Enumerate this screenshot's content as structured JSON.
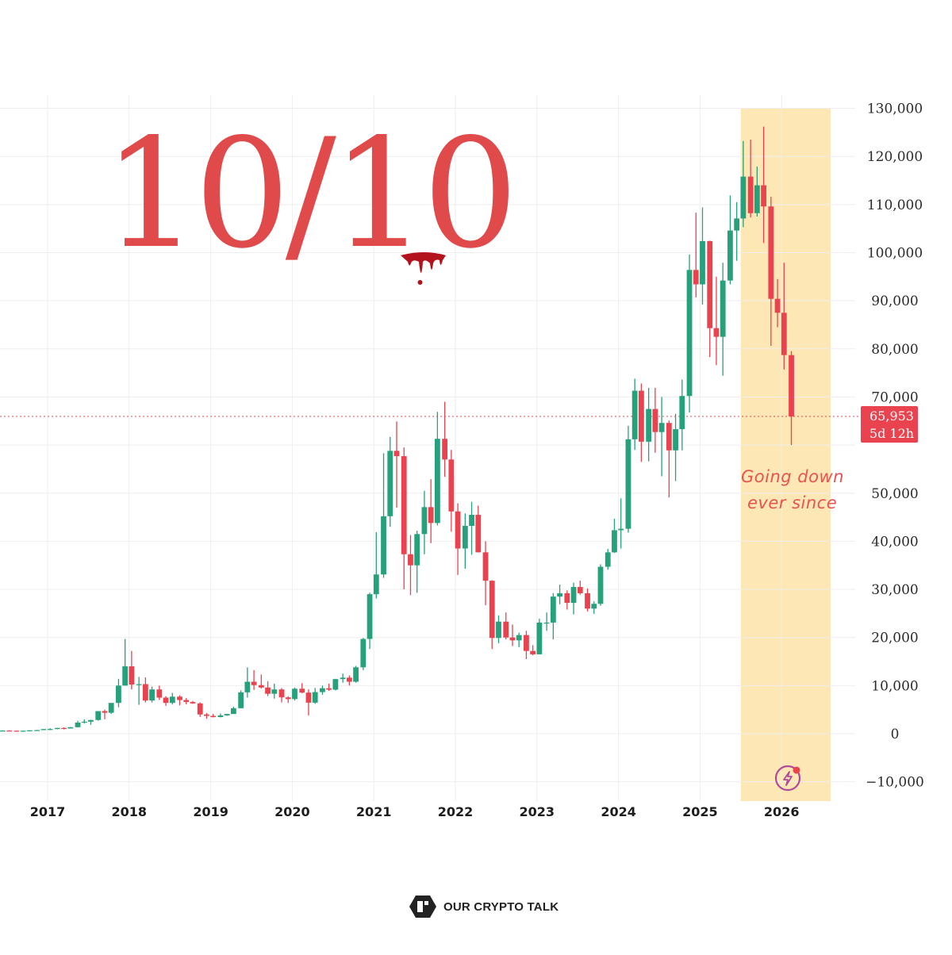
{
  "headline": "10/10",
  "annotation": {
    "line1": "Going down",
    "line2": "ever since"
  },
  "brand": {
    "name": "OUR CRYPTO TALK"
  },
  "colors": {
    "up": "#26a17b",
    "down": "#e8434f",
    "highlight": "#fde7b4",
    "price_line": "#e8434f",
    "headline": "#e04a4a"
  },
  "icons": {
    "bolt": "lightning-bolt-icon"
  },
  "chart_data": {
    "type": "candlestick",
    "title": "",
    "xlabel": "",
    "ylabel": "",
    "ylim": [
      -14000,
      130000
    ],
    "y_ticks": [
      130000,
      120000,
      110000,
      100000,
      90000,
      80000,
      70000,
      60000,
      50000,
      40000,
      30000,
      20000,
      10000,
      0,
      -10000
    ],
    "y_tick_labels": [
      "130,000",
      "120,000",
      "110,000",
      "100,000",
      "90,000",
      "80,000",
      "70,000",
      "",
      "50,000",
      "40,000",
      "30,000",
      "20,000",
      "10,000",
      "0",
      "−10,000"
    ],
    "x_ticks": [
      2017,
      2018,
      2019,
      2020,
      2021,
      2022,
      2023,
      2024,
      2025,
      2026
    ],
    "x_tick_labels": [
      "2017",
      "2018",
      "2019",
      "2020",
      "2021",
      "2022",
      "2023",
      "2024",
      "2025",
      "2026"
    ],
    "grid": true,
    "last_price": {
      "value": 65953,
      "label": "65,953",
      "countdown": "5d 12h"
    },
    "highlight_range": [
      2025.5,
      2026.6
    ],
    "candles": [
      {
        "t": 2016.45,
        "o": 600,
        "h": 700,
        "l": 500,
        "c": 650
      },
      {
        "t": 2016.53,
        "o": 650,
        "h": 720,
        "l": 550,
        "c": 620
      },
      {
        "t": 2016.62,
        "o": 620,
        "h": 680,
        "l": 560,
        "c": 600
      },
      {
        "t": 2016.7,
        "o": 600,
        "h": 650,
        "l": 570,
        "c": 620
      },
      {
        "t": 2016.78,
        "o": 620,
        "h": 720,
        "l": 600,
        "c": 700
      },
      {
        "t": 2016.87,
        "o": 700,
        "h": 800,
        "l": 690,
        "c": 750
      },
      {
        "t": 2016.95,
        "o": 750,
        "h": 970,
        "l": 740,
        "c": 960
      },
      {
        "t": 2017.03,
        "o": 970,
        "h": 1150,
        "l": 750,
        "c": 970
      },
      {
        "t": 2017.12,
        "o": 970,
        "h": 1200,
        "l": 920,
        "c": 1190
      },
      {
        "t": 2017.2,
        "o": 1190,
        "h": 1300,
        "l": 890,
        "c": 1080
      },
      {
        "t": 2017.28,
        "o": 1080,
        "h": 1400,
        "l": 1070,
        "c": 1350
      },
      {
        "t": 2017.37,
        "o": 1350,
        "h": 2700,
        "l": 1350,
        "c": 2300
      },
      {
        "t": 2017.45,
        "o": 2300,
        "h": 3000,
        "l": 2100,
        "c": 2500
      },
      {
        "t": 2017.53,
        "o": 2500,
        "h": 2900,
        "l": 1850,
        "c": 2850
      },
      {
        "t": 2017.62,
        "o": 2850,
        "h": 4700,
        "l": 2700,
        "c": 4700
      },
      {
        "t": 2017.7,
        "o": 4700,
        "h": 5000,
        "l": 3000,
        "c": 4350
      },
      {
        "t": 2017.78,
        "o": 4350,
        "h": 6400,
        "l": 4100,
        "c": 6400
      },
      {
        "t": 2017.87,
        "o": 6400,
        "h": 11400,
        "l": 5500,
        "c": 10000
      },
      {
        "t": 2017.95,
        "o": 10000,
        "h": 19700,
        "l": 10000,
        "c": 14000
      },
      {
        "t": 2018.03,
        "o": 14000,
        "h": 17200,
        "l": 9200,
        "c": 10200
      },
      {
        "t": 2018.12,
        "o": 10200,
        "h": 11800,
        "l": 6000,
        "c": 10300
      },
      {
        "t": 2018.2,
        "o": 10300,
        "h": 11700,
        "l": 6500,
        "c": 6900
      },
      {
        "t": 2018.28,
        "o": 6900,
        "h": 9800,
        "l": 6500,
        "c": 9200
      },
      {
        "t": 2018.37,
        "o": 9200,
        "h": 10000,
        "l": 7000,
        "c": 7500
      },
      {
        "t": 2018.45,
        "o": 7500,
        "h": 7800,
        "l": 5800,
        "c": 6400
      },
      {
        "t": 2018.53,
        "o": 6400,
        "h": 8500,
        "l": 6100,
        "c": 7700
      },
      {
        "t": 2018.62,
        "o": 7700,
        "h": 8000,
        "l": 5900,
        "c": 7000
      },
      {
        "t": 2018.7,
        "o": 7000,
        "h": 7400,
        "l": 6100,
        "c": 6600
      },
      {
        "t": 2018.78,
        "o": 6600,
        "h": 6800,
        "l": 6200,
        "c": 6300
      },
      {
        "t": 2018.87,
        "o": 6300,
        "h": 6500,
        "l": 3500,
        "c": 4000
      },
      {
        "t": 2018.95,
        "o": 4000,
        "h": 4300,
        "l": 3100,
        "c": 3700
      },
      {
        "t": 2019.03,
        "o": 3700,
        "h": 4100,
        "l": 3400,
        "c": 3450
      },
      {
        "t": 2019.12,
        "o": 3450,
        "h": 4200,
        "l": 3400,
        "c": 3800
      },
      {
        "t": 2019.2,
        "o": 3800,
        "h": 4100,
        "l": 3700,
        "c": 4100
      },
      {
        "t": 2019.28,
        "o": 4100,
        "h": 5600,
        "l": 4100,
        "c": 5300
      },
      {
        "t": 2019.37,
        "o": 5300,
        "h": 9000,
        "l": 5300,
        "c": 8600
      },
      {
        "t": 2019.45,
        "o": 8600,
        "h": 13800,
        "l": 7500,
        "c": 10800
      },
      {
        "t": 2019.53,
        "o": 10800,
        "h": 13200,
        "l": 9100,
        "c": 10100
      },
      {
        "t": 2019.62,
        "o": 10100,
        "h": 12300,
        "l": 9400,
        "c": 9600
      },
      {
        "t": 2019.7,
        "o": 9600,
        "h": 10900,
        "l": 7800,
        "c": 8300
      },
      {
        "t": 2019.78,
        "o": 8300,
        "h": 10400,
        "l": 7300,
        "c": 9200
      },
      {
        "t": 2019.87,
        "o": 9200,
        "h": 9500,
        "l": 6500,
        "c": 7550
      },
      {
        "t": 2019.95,
        "o": 7550,
        "h": 7800,
        "l": 6400,
        "c": 7200
      },
      {
        "t": 2020.03,
        "o": 7200,
        "h": 9600,
        "l": 6900,
        "c": 9350
      },
      {
        "t": 2020.12,
        "o": 9350,
        "h": 10500,
        "l": 8400,
        "c": 8550
      },
      {
        "t": 2020.2,
        "o": 8550,
        "h": 9200,
        "l": 3800,
        "c": 6450
      },
      {
        "t": 2020.28,
        "o": 6450,
        "h": 9500,
        "l": 6200,
        "c": 8650
      },
      {
        "t": 2020.37,
        "o": 8650,
        "h": 10000,
        "l": 8100,
        "c": 9450
      },
      {
        "t": 2020.45,
        "o": 9450,
        "h": 10400,
        "l": 8900,
        "c": 9150
      },
      {
        "t": 2020.53,
        "o": 9150,
        "h": 11400,
        "l": 9000,
        "c": 11350
      },
      {
        "t": 2020.62,
        "o": 11350,
        "h": 12500,
        "l": 10600,
        "c": 11650
      },
      {
        "t": 2020.7,
        "o": 11650,
        "h": 12100,
        "l": 10000,
        "c": 10800
      },
      {
        "t": 2020.78,
        "o": 10800,
        "h": 14100,
        "l": 10600,
        "c": 13800
      },
      {
        "t": 2020.87,
        "o": 13800,
        "h": 19900,
        "l": 13200,
        "c": 19700
      },
      {
        "t": 2020.95,
        "o": 19700,
        "h": 29300,
        "l": 17600,
        "c": 29000
      },
      {
        "t": 2021.03,
        "o": 29000,
        "h": 41900,
        "l": 28100,
        "c": 33100
      },
      {
        "t": 2021.12,
        "o": 33100,
        "h": 58300,
        "l": 32400,
        "c": 45200
      },
      {
        "t": 2021.2,
        "o": 45200,
        "h": 61700,
        "l": 43000,
        "c": 58800
      },
      {
        "t": 2021.28,
        "o": 58800,
        "h": 64900,
        "l": 47000,
        "c": 57700
      },
      {
        "t": 2021.37,
        "o": 57700,
        "h": 59500,
        "l": 30000,
        "c": 37300
      },
      {
        "t": 2021.45,
        "o": 37300,
        "h": 41300,
        "l": 28800,
        "c": 35000
      },
      {
        "t": 2021.53,
        "o": 35000,
        "h": 42200,
        "l": 29300,
        "c": 41500
      },
      {
        "t": 2021.62,
        "o": 41500,
        "h": 50500,
        "l": 37300,
        "c": 47100
      },
      {
        "t": 2021.7,
        "o": 47100,
        "h": 52900,
        "l": 39600,
        "c": 43800
      },
      {
        "t": 2021.78,
        "o": 43800,
        "h": 66900,
        "l": 43300,
        "c": 61300
      },
      {
        "t": 2021.87,
        "o": 61300,
        "h": 69000,
        "l": 53400,
        "c": 57000
      },
      {
        "t": 2021.95,
        "o": 57000,
        "h": 59000,
        "l": 42000,
        "c": 46200
      },
      {
        "t": 2022.03,
        "o": 46200,
        "h": 47900,
        "l": 33000,
        "c": 38500
      },
      {
        "t": 2022.12,
        "o": 38500,
        "h": 45800,
        "l": 34300,
        "c": 43200
      },
      {
        "t": 2022.2,
        "o": 43200,
        "h": 48200,
        "l": 37200,
        "c": 45500
      },
      {
        "t": 2022.28,
        "o": 45500,
        "h": 47400,
        "l": 37700,
        "c": 37700
      },
      {
        "t": 2022.37,
        "o": 37700,
        "h": 40000,
        "l": 26700,
        "c": 31800
      },
      {
        "t": 2022.45,
        "o": 31800,
        "h": 31900,
        "l": 17600,
        "c": 19900
      },
      {
        "t": 2022.53,
        "o": 19900,
        "h": 24600,
        "l": 18800,
        "c": 23300
      },
      {
        "t": 2022.62,
        "o": 23300,
        "h": 25200,
        "l": 19600,
        "c": 20000
      },
      {
        "t": 2022.7,
        "o": 20000,
        "h": 22700,
        "l": 18200,
        "c": 19400
      },
      {
        "t": 2022.78,
        "o": 19400,
        "h": 21000,
        "l": 18000,
        "c": 20500
      },
      {
        "t": 2022.87,
        "o": 20500,
        "h": 21400,
        "l": 15500,
        "c": 17200
      },
      {
        "t": 2022.95,
        "o": 17200,
        "h": 18400,
        "l": 16300,
        "c": 16500
      },
      {
        "t": 2023.03,
        "o": 16500,
        "h": 23900,
        "l": 16500,
        "c": 23100
      },
      {
        "t": 2023.12,
        "o": 23100,
        "h": 25200,
        "l": 21400,
        "c": 23100
      },
      {
        "t": 2023.2,
        "o": 23100,
        "h": 29200,
        "l": 19600,
        "c": 28500
      },
      {
        "t": 2023.28,
        "o": 28500,
        "h": 31000,
        "l": 26900,
        "c": 29200
      },
      {
        "t": 2023.37,
        "o": 29200,
        "h": 29800,
        "l": 25800,
        "c": 27200
      },
      {
        "t": 2023.45,
        "o": 27200,
        "h": 31400,
        "l": 24800,
        "c": 30500
      },
      {
        "t": 2023.53,
        "o": 30500,
        "h": 31800,
        "l": 28900,
        "c": 29200
      },
      {
        "t": 2023.62,
        "o": 29200,
        "h": 30200,
        "l": 25400,
        "c": 26000
      },
      {
        "t": 2023.7,
        "o": 26000,
        "h": 27500,
        "l": 24900,
        "c": 27000
      },
      {
        "t": 2023.78,
        "o": 27000,
        "h": 35200,
        "l": 26600,
        "c": 34700
      },
      {
        "t": 2023.87,
        "o": 34700,
        "h": 38400,
        "l": 34100,
        "c": 37700
      },
      {
        "t": 2023.95,
        "o": 37700,
        "h": 44700,
        "l": 37600,
        "c": 42300
      },
      {
        "t": 2024.03,
        "o": 42300,
        "h": 48900,
        "l": 38500,
        "c": 42600
      },
      {
        "t": 2024.12,
        "o": 42600,
        "h": 64000,
        "l": 41800,
        "c": 61200
      },
      {
        "t": 2024.2,
        "o": 61200,
        "h": 73800,
        "l": 59000,
        "c": 71300
      },
      {
        "t": 2024.28,
        "o": 71300,
        "h": 72800,
        "l": 56500,
        "c": 60700
      },
      {
        "t": 2024.37,
        "o": 60700,
        "h": 71900,
        "l": 56600,
        "c": 67500
      },
      {
        "t": 2024.45,
        "o": 67500,
        "h": 71900,
        "l": 58400,
        "c": 62700
      },
      {
        "t": 2024.53,
        "o": 62700,
        "h": 70000,
        "l": 53500,
        "c": 64600
      },
      {
        "t": 2024.62,
        "o": 64600,
        "h": 65100,
        "l": 49100,
        "c": 58900
      },
      {
        "t": 2024.7,
        "o": 58900,
        "h": 66500,
        "l": 52500,
        "c": 63300
      },
      {
        "t": 2024.78,
        "o": 63300,
        "h": 73600,
        "l": 58900,
        "c": 70200
      },
      {
        "t": 2024.87,
        "o": 70200,
        "h": 99600,
        "l": 66800,
        "c": 96400
      },
      {
        "t": 2024.95,
        "o": 96400,
        "h": 108300,
        "l": 90700,
        "c": 93400
      },
      {
        "t": 2025.03,
        "o": 93400,
        "h": 109400,
        "l": 89200,
        "c": 102400
      },
      {
        "t": 2025.12,
        "o": 102400,
        "h": 102500,
        "l": 78300,
        "c": 84300
      },
      {
        "t": 2025.2,
        "o": 84300,
        "h": 95000,
        "l": 76600,
        "c": 82500
      },
      {
        "t": 2025.28,
        "o": 82500,
        "h": 97900,
        "l": 74400,
        "c": 94200
      },
      {
        "t": 2025.37,
        "o": 94200,
        "h": 111900,
        "l": 93400,
        "c": 104600
      },
      {
        "t": 2025.45,
        "o": 104600,
        "h": 110500,
        "l": 98300,
        "c": 107100
      },
      {
        "t": 2025.53,
        "o": 107100,
        "h": 123200,
        "l": 105300,
        "c": 115800
      },
      {
        "t": 2025.62,
        "o": 115800,
        "h": 123500,
        "l": 107300,
        "c": 108200
      },
      {
        "t": 2025.7,
        "o": 108200,
        "h": 117900,
        "l": 107500,
        "c": 114000
      },
      {
        "t": 2025.78,
        "o": 114000,
        "h": 126200,
        "l": 102000,
        "c": 109600
      },
      {
        "t": 2025.87,
        "o": 109600,
        "h": 111600,
        "l": 80600,
        "c": 90400
      },
      {
        "t": 2025.95,
        "o": 90400,
        "h": 94500,
        "l": 84500,
        "c": 87500
      },
      {
        "t": 2026.03,
        "o": 87500,
        "h": 97900,
        "l": 75700,
        "c": 78700
      },
      {
        "t": 2026.12,
        "o": 78700,
        "h": 79500,
        "l": 60000,
        "c": 65953
      }
    ]
  }
}
